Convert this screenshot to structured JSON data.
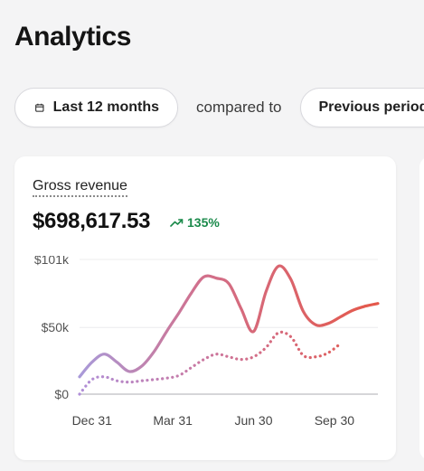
{
  "page": {
    "title": "Analytics"
  },
  "filters": {
    "range_label": "Last 12 months",
    "compared_label": "compared to",
    "comparison_label": "Previous period"
  },
  "metric": {
    "label": "Gross revenue",
    "value": "$698,617.53",
    "change": "135%"
  },
  "colors": {
    "current_start": "#a99ad9",
    "current_end": "#e4584a",
    "previous_start": "#b08fd8",
    "previous_end": "#e4584a",
    "positive": "#1b8a4b"
  },
  "chart_data": {
    "type": "line",
    "ylim": [
      0,
      101000
    ],
    "y_ticks": [
      {
        "value": 0,
        "label": "$0"
      },
      {
        "value": 50000,
        "label": "$50k"
      },
      {
        "value": 101000,
        "label": "$101k"
      }
    ],
    "x_ticks": [
      "Dec 31",
      "Mar 31",
      "Jun 30",
      "Sep 30"
    ],
    "x_tick_index": [
      2,
      15,
      28,
      41
    ],
    "series": [
      {
        "style": "solid",
        "values": [
          13000,
          24000,
          30000,
          24000,
          17000,
          21000,
          32000,
          47000,
          61000,
          76000,
          88000,
          87000,
          83000,
          64000,
          47000,
          77000,
          96000,
          86000,
          62000,
          52000,
          53000,
          58000,
          63000,
          66000,
          68000
        ]
      },
      {
        "style": "dotted",
        "values": [
          0,
          11000,
          13000,
          10000,
          9000,
          10000,
          11000,
          12000,
          14000,
          20000,
          26000,
          30000,
          28000,
          26000,
          28000,
          35000,
          46000,
          43000,
          29000,
          28000,
          31000,
          38000
        ]
      }
    ]
  }
}
